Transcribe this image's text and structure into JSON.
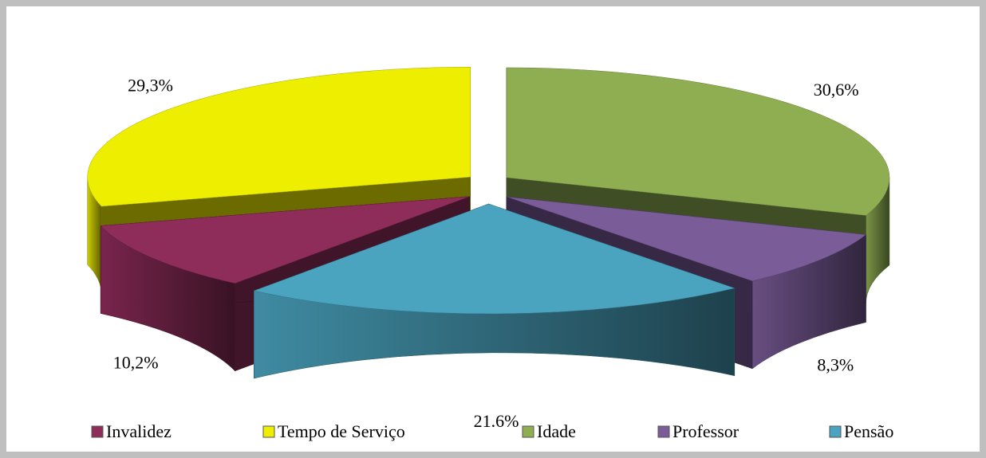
{
  "chart_data": {
    "type": "pie",
    "categories": [
      "Invalidez",
      "Tempo de Serviço",
      "Idade",
      "Professor",
      "Pensão"
    ],
    "values": [
      10.2,
      29.3,
      30.6,
      8.3,
      21.6
    ],
    "value_labels": [
      "10,2%",
      "29,3%",
      "30,6%",
      "8,3%",
      "21.6%"
    ],
    "colors": [
      "#8e2c5a",
      "#eeee00",
      "#8fae52",
      "#7a5c99",
      "#4aa3bf"
    ],
    "legend": "bottom"
  }
}
